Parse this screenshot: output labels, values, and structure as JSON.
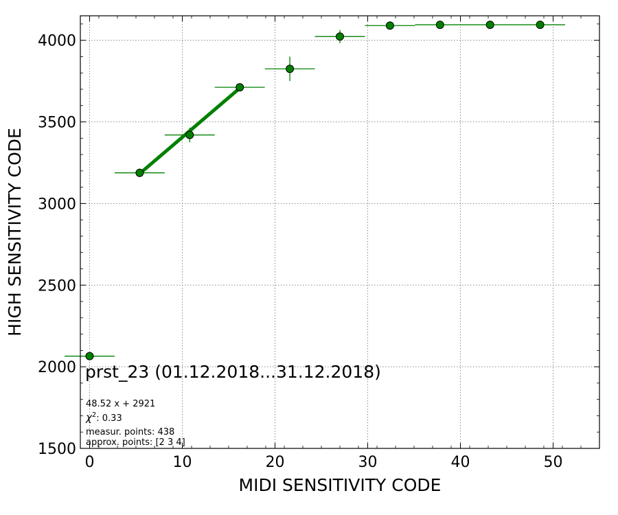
{
  "chart_data": {
    "type": "scatter",
    "xlabel": "MIDI SENSITIVITY CODE",
    "ylabel": "HIGH SENSITIVITY CODE",
    "xlim": [
      -1,
      55
    ],
    "ylim": [
      1500,
      4150
    ],
    "xticks": [
      "0",
      "10",
      "20",
      "30",
      "40",
      "50"
    ],
    "xtick_values": [
      0,
      10,
      20,
      30,
      40,
      50
    ],
    "yticks": [
      "1500",
      "2000",
      "2500",
      "3000",
      "3500",
      "4000"
    ],
    "ytick_values": [
      1500,
      2000,
      2500,
      3000,
      3500,
      4000
    ],
    "grid": true,
    "marker_color": "#008000",
    "points": [
      {
        "x": 0.0,
        "y": 2065,
        "xerr": 2.7,
        "yerr": 0
      },
      {
        "x": 5.4,
        "y": 3188,
        "xerr": 2.7,
        "yerr": 25
      },
      {
        "x": 10.8,
        "y": 3420,
        "xerr": 2.7,
        "yerr": 45
      },
      {
        "x": 16.2,
        "y": 3712,
        "xerr": 2.7,
        "yerr": 10
      },
      {
        "x": 21.6,
        "y": 3825,
        "xerr": 2.7,
        "yerr": 75
      },
      {
        "x": 27.0,
        "y": 4023,
        "xerr": 2.7,
        "yerr": 40
      },
      {
        "x": 32.4,
        "y": 4090,
        "xerr": 2.7,
        "yerr": 5
      },
      {
        "x": 37.8,
        "y": 4095,
        "xerr": 2.7,
        "yerr": 5
      },
      {
        "x": 43.2,
        "y": 4095,
        "xerr": 2.7,
        "yerr": 5
      },
      {
        "x": 48.6,
        "y": 4095,
        "xerr": 2.7,
        "yerr": 5
      }
    ],
    "fit": {
      "slope": 48.52,
      "intercept": 2921,
      "x_range": [
        5.4,
        16.2
      ],
      "color": "#008000"
    },
    "annotations": {
      "title": "prst_23 (01.12.2018...31.12.2018)",
      "equation": "48.52 x + 2921",
      "chi2_symbol": "χ",
      "chi2_power": "2",
      "chi2_value": ": 0.33",
      "measur_points": "measur. points: 438",
      "approx_points": "approx. points: [2 3 4]"
    }
  }
}
